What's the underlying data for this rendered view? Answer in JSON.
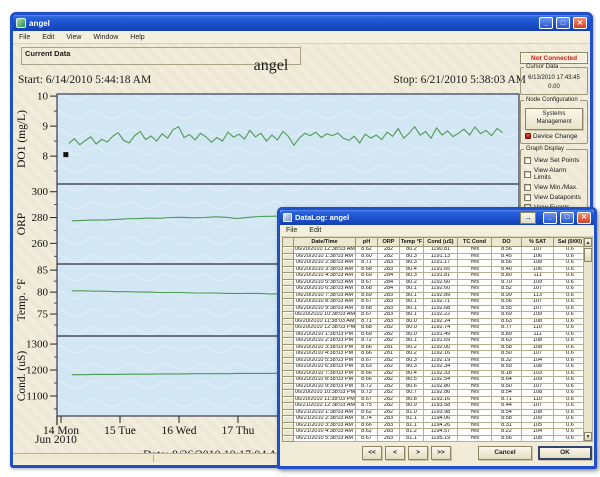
{
  "window": {
    "title": "angel",
    "menu": [
      "File",
      "Edit",
      "View",
      "Window",
      "Help"
    ],
    "tab_label": "Current Data",
    "controls": {
      "minimize": "_",
      "maximize": "□",
      "close": "✕"
    }
  },
  "main": {
    "title": "angel",
    "start_label": "Start: 6/14/2010 5:44:18  AM",
    "stop_label": "Stop: 6/21/2010 5:38:03  AM",
    "month_label": "Jun 2010",
    "time_label": "Time",
    "date_label": "Date: 8/26/2010 10:17:04  AM"
  },
  "sidebar": {
    "not_connected": "Not Connected",
    "cursor_data": {
      "label": "Cursor Data",
      "datetime": "6/13/2010 17:43:45",
      "value": "0.00"
    },
    "node_config": {
      "label": "Node Configuration",
      "button": "Systems Management",
      "device_change": "Device Change"
    },
    "graph_display": {
      "label": "Graph Display",
      "checkboxes": [
        "View Set Points",
        "View Alarm Limits",
        "View Min./Max.",
        "View Datapoints",
        "View Events"
      ]
    },
    "view_datapoints_label": "View Datapoints"
  },
  "datalog": {
    "title": "DataLog: angel",
    "menu": [
      "File",
      "Edit"
    ],
    "headers": [
      "Date/Time",
      "pH",
      "ORP",
      "Temp °F",
      "Cond (uS)",
      "TC Cond",
      "DO",
      "% SAT",
      "Sal (0/00)"
    ],
    "rows": [
      [
        "06/20/2010 12:38:03 AM",
        "8.62",
        "282",
        "80.2",
        "1190.81",
        "Yes",
        "8.56",
        "107",
        "0.6"
      ],
      [
        "06/20/2010 1:38:03 AM",
        "8.60",
        "282",
        "80.3",
        "1191.13",
        "Yes",
        "8.45",
        "106",
        "0.6"
      ],
      [
        "06/20/2010 2:38:03 AM",
        "8.71",
        "283",
        "80.3",
        "1191.17",
        "Yes",
        "8.56",
        "108",
        "0.6"
      ],
      [
        "06/20/2010 3:38:03 AM",
        "8.68",
        "283",
        "80.4",
        "1191.65",
        "Yes",
        "8.40",
        "106",
        "0.6"
      ],
      [
        "06/20/2010 4:38:03 AM",
        "8.69",
        "284",
        "80.3",
        "1191.81",
        "Yes",
        "8.80",
        "111",
        "0.6"
      ],
      [
        "06/20/2010 5:38:03 AM",
        "8.67",
        "284",
        "80.2",
        "1192.60",
        "Yes",
        "8.70",
        "109",
        "0.6"
      ],
      [
        "06/20/2010 6:38:03 AM",
        "8.68",
        "284",
        "80.1",
        "1192.60",
        "Yes",
        "8.52",
        "107",
        "0.6"
      ],
      [
        "06/20/2010 7:38:03 AM",
        "8.69",
        "283",
        "80.1",
        "1192.89",
        "Yes",
        "8.99",
        "113",
        "0.6"
      ],
      [
        "06/20/2010 8:38:03 AM",
        "8.67",
        "283",
        "80.1",
        "1192.71",
        "Yes",
        "8.56",
        "107",
        "0.6"
      ],
      [
        "06/20/2010 9:38:03 AM",
        "8.68",
        "283",
        "80.1",
        "1192.68",
        "Yes",
        "8.55",
        "107",
        "0.6"
      ],
      [
        "06/20/2010 10:38:03 AM",
        "8.67",
        "283",
        "80.1",
        "1192.22",
        "Yes",
        "8.69",
        "109",
        "0.6"
      ],
      [
        "06/20/2010 11:38:03 AM",
        "8.71",
        "283",
        "80.0",
        "1192.24",
        "Yes",
        "8.63",
        "108",
        "0.6"
      ],
      [
        "06/20/2010 12:38:03 PM",
        "8.68",
        "282",
        "80.0",
        "1192.74",
        "Yes",
        "8.77",
        "110",
        "0.6"
      ],
      [
        "06/20/2010 1:38:03 PM",
        "8.69",
        "282",
        "80.0",
        "1191.49",
        "Yes",
        "8.89",
        "111",
        "0.6"
      ],
      [
        "06/20/2010 2:38:03 PM",
        "8.72",
        "282",
        "80.1",
        "1191.69",
        "Yes",
        "8.63",
        "108",
        "0.6"
      ],
      [
        "06/20/2010 3:38:03 PM",
        "8.66",
        "281",
        "80.2",
        "1192.00",
        "Yes",
        "8.58",
        "108",
        "0.6"
      ],
      [
        "06/20/2010 4:38:03 PM",
        "8.66",
        "281",
        "80.2",
        "1192.16",
        "Yes",
        "8.50",
        "107",
        "0.6"
      ],
      [
        "06/20/2010 5:38:03 PM",
        "8.67",
        "282",
        "80.3",
        "1192.19",
        "Yes",
        "8.32",
        "104",
        "0.6"
      ],
      [
        "06/20/2010 6:38:03 PM",
        "8.63",
        "282",
        "80.3",
        "1192.34",
        "Yes",
        "8.59",
        "108",
        "0.6"
      ],
      [
        "06/20/2010 7:38:03 PM",
        "8.66",
        "282",
        "80.4",
        "1192.33",
        "Yes",
        "8.18",
        "103",
        "0.6"
      ],
      [
        "06/20/2010 8:38:03 PM",
        "8.66",
        "282",
        "80.5",
        "1192.54",
        "Yes",
        "8.64",
        "109",
        "0.6"
      ],
      [
        "06/20/2010 9:38:03 PM",
        "8.72",
        "282",
        "80.6",
        "1192.80",
        "Yes",
        "8.50",
        "107",
        "0.6"
      ],
      [
        "06/20/2010 10:38:03 PM",
        "8.73",
        "282",
        "80.7",
        "1192.86",
        "Yes",
        "8.54",
        "108",
        "0.6"
      ],
      [
        "06/20/2010 11:38:03 PM",
        "8.67",
        "282",
        "80.8",
        "1193.16",
        "Yes",
        "8.71",
        "110",
        "0.6"
      ],
      [
        "06/21/2010 12:38:03 AM",
        "8.75",
        "282",
        "80.9",
        "1193.58",
        "Yes",
        "8.44",
        "107",
        "0.6"
      ],
      [
        "06/21/2010 1:38:03 AM",
        "8.62",
        "282",
        "81.0",
        "1193.98",
        "Yes",
        "8.54",
        "108",
        "0.6"
      ],
      [
        "06/21/2010 2:38:03 AM",
        "8.74",
        "283",
        "81.1",
        "1194.06",
        "Yes",
        "8.58",
        "109",
        "0.6"
      ],
      [
        "06/21/2010 3:38:03 AM",
        "8.66",
        "283",
        "81.1",
        "1194.26",
        "Yes",
        "8.31",
        "105",
        "0.6"
      ],
      [
        "06/21/2010 4:38:03 AM",
        "8.62",
        "283",
        "81.2",
        "1194.57",
        "Yes",
        "8.22",
        "104",
        "0.6"
      ],
      [
        "06/21/2010 5:38:03 AM",
        "8.67",
        "283",
        "81.1",
        "1195.19",
        "Yes",
        "8.56",
        "108",
        "0.6"
      ]
    ],
    "buttons": {
      "first": "<<",
      "prev": "<",
      "next": ">",
      "last": ">>",
      "cancel": "Cancel",
      "ok": "OK"
    }
  },
  "chart_data": {
    "type": "line",
    "bg_color": "#d2e6f4",
    "line_color": "#4e9b53",
    "x_axis": {
      "ticks": [
        {
          "day": 14,
          "label": "14 Mon"
        },
        {
          "day": 15,
          "label": "15 Tue"
        },
        {
          "day": 16,
          "label": "16 Wed"
        },
        {
          "day": 17,
          "label": "17 Thu"
        }
      ],
      "unlabeled_tick_days": [
        18,
        19,
        20,
        21
      ],
      "month_label": "Jun 2010",
      "axis_label": "Time"
    },
    "start_marker": {
      "day": 14.15,
      "value": 8.05
    },
    "panels": [
      {
        "name": "DO1 (mg/L)",
        "ticks": [
          10,
          9,
          8
        ],
        "range_top": 10.07,
        "range_bottom": 7.07,
        "series": {
          "x_start": 14.2,
          "x_end": 21.55,
          "values": [
            8.42,
            8.58,
            8.38,
            8.52,
            8.64,
            8.4,
            8.56,
            8.47,
            8.66,
            8.78,
            8.52,
            8.44,
            8.68,
            8.82,
            8.55,
            8.67,
            8.5,
            8.74,
            8.6,
            8.88,
            8.98,
            8.62,
            8.72,
            8.54,
            8.76,
            8.64,
            8.46,
            8.62,
            8.5,
            8.8,
            8.63,
            8.73,
            8.57,
            8.86,
            8.64,
            8.76,
            8.5,
            8.7,
            8.54,
            8.82,
            8.66,
            8.36,
            8.6,
            8.76,
            8.68,
            8.8,
            8.62,
            8.74,
            8.68,
            8.77,
            8.6,
            8.52,
            8.66,
            8.44,
            8.73,
            8.6,
            8.7,
            8.55,
            8.8,
            8.66,
            8.92,
            8.6,
            8.76,
            8.98,
            8.7,
            8.82,
            8.6,
            8.94,
            8.7,
            8.84,
            8.65,
            8.76,
            8.9,
            8.7,
            8.97,
            8.75,
            8.86,
            8.68,
            8.92,
            8.78
          ]
        }
      },
      {
        "name": "ORP",
        "ticks": [
          300,
          280,
          260
        ],
        "range_top": 306,
        "range_bottom": 244,
        "series": {
          "x_start": 14.25,
          "x_end": 21.55,
          "values": [
            277.5,
            277.8,
            278.2,
            278.0,
            278.6,
            279.0,
            279.2,
            279.6,
            279.4,
            280.0,
            280.2,
            279.8,
            280.0,
            280.6,
            280.2,
            279.2,
            280.2,
            280.8,
            281.0,
            281.2,
            281.6,
            281.2,
            281.6,
            282.0,
            281.6,
            282.0,
            282.2,
            282.6,
            282.2,
            282.6,
            283.0,
            283.2,
            283.6,
            284.0,
            284.4,
            284.0,
            283.6,
            284.6,
            285.0,
            285.4
          ]
        }
      },
      {
        "name": "Temp. °F",
        "ticks": [
          85,
          80,
          75
        ],
        "range_top": 86.4,
        "range_bottom": 70,
        "series": {
          "x_start": 14.25,
          "x_end": 21.55,
          "values": [
            80.3,
            80.3,
            80.2,
            80.2,
            80.1,
            80.1,
            80.0,
            80.0,
            79.9,
            79.9,
            79.9,
            79.8,
            79.8,
            79.8,
            79.7,
            79.7,
            79.7,
            79.7,
            79.6,
            79.6,
            79.6,
            79.6,
            79.6,
            79.5,
            79.5,
            79.5,
            79.5,
            79.5,
            79.5,
            79.4,
            79.4,
            79.5,
            79.4,
            79.5,
            79.5,
            79.4,
            79.5,
            79.5,
            79.4,
            79.5
          ]
        }
      },
      {
        "name": "Cond. (uS)",
        "ticks": [
          1300,
          1200,
          1100
        ],
        "range_top": 1331,
        "range_bottom": 1023,
        "series": {
          "x_start": 14.25,
          "x_end": 21.55,
          "values": [
            1182,
            1182,
            1183,
            1183,
            1183,
            1184,
            1184,
            1184,
            1185,
            1185,
            1185,
            1186,
            1186,
            1186,
            1186,
            1187,
            1187,
            1187,
            1187,
            1188,
            1188,
            1188,
            1188,
            1189,
            1189,
            1189,
            1189,
            1190,
            1190,
            1190,
            1190,
            1191,
            1191,
            1191,
            1191,
            1192,
            1192,
            1192,
            1192,
            1193
          ]
        }
      }
    ]
  }
}
